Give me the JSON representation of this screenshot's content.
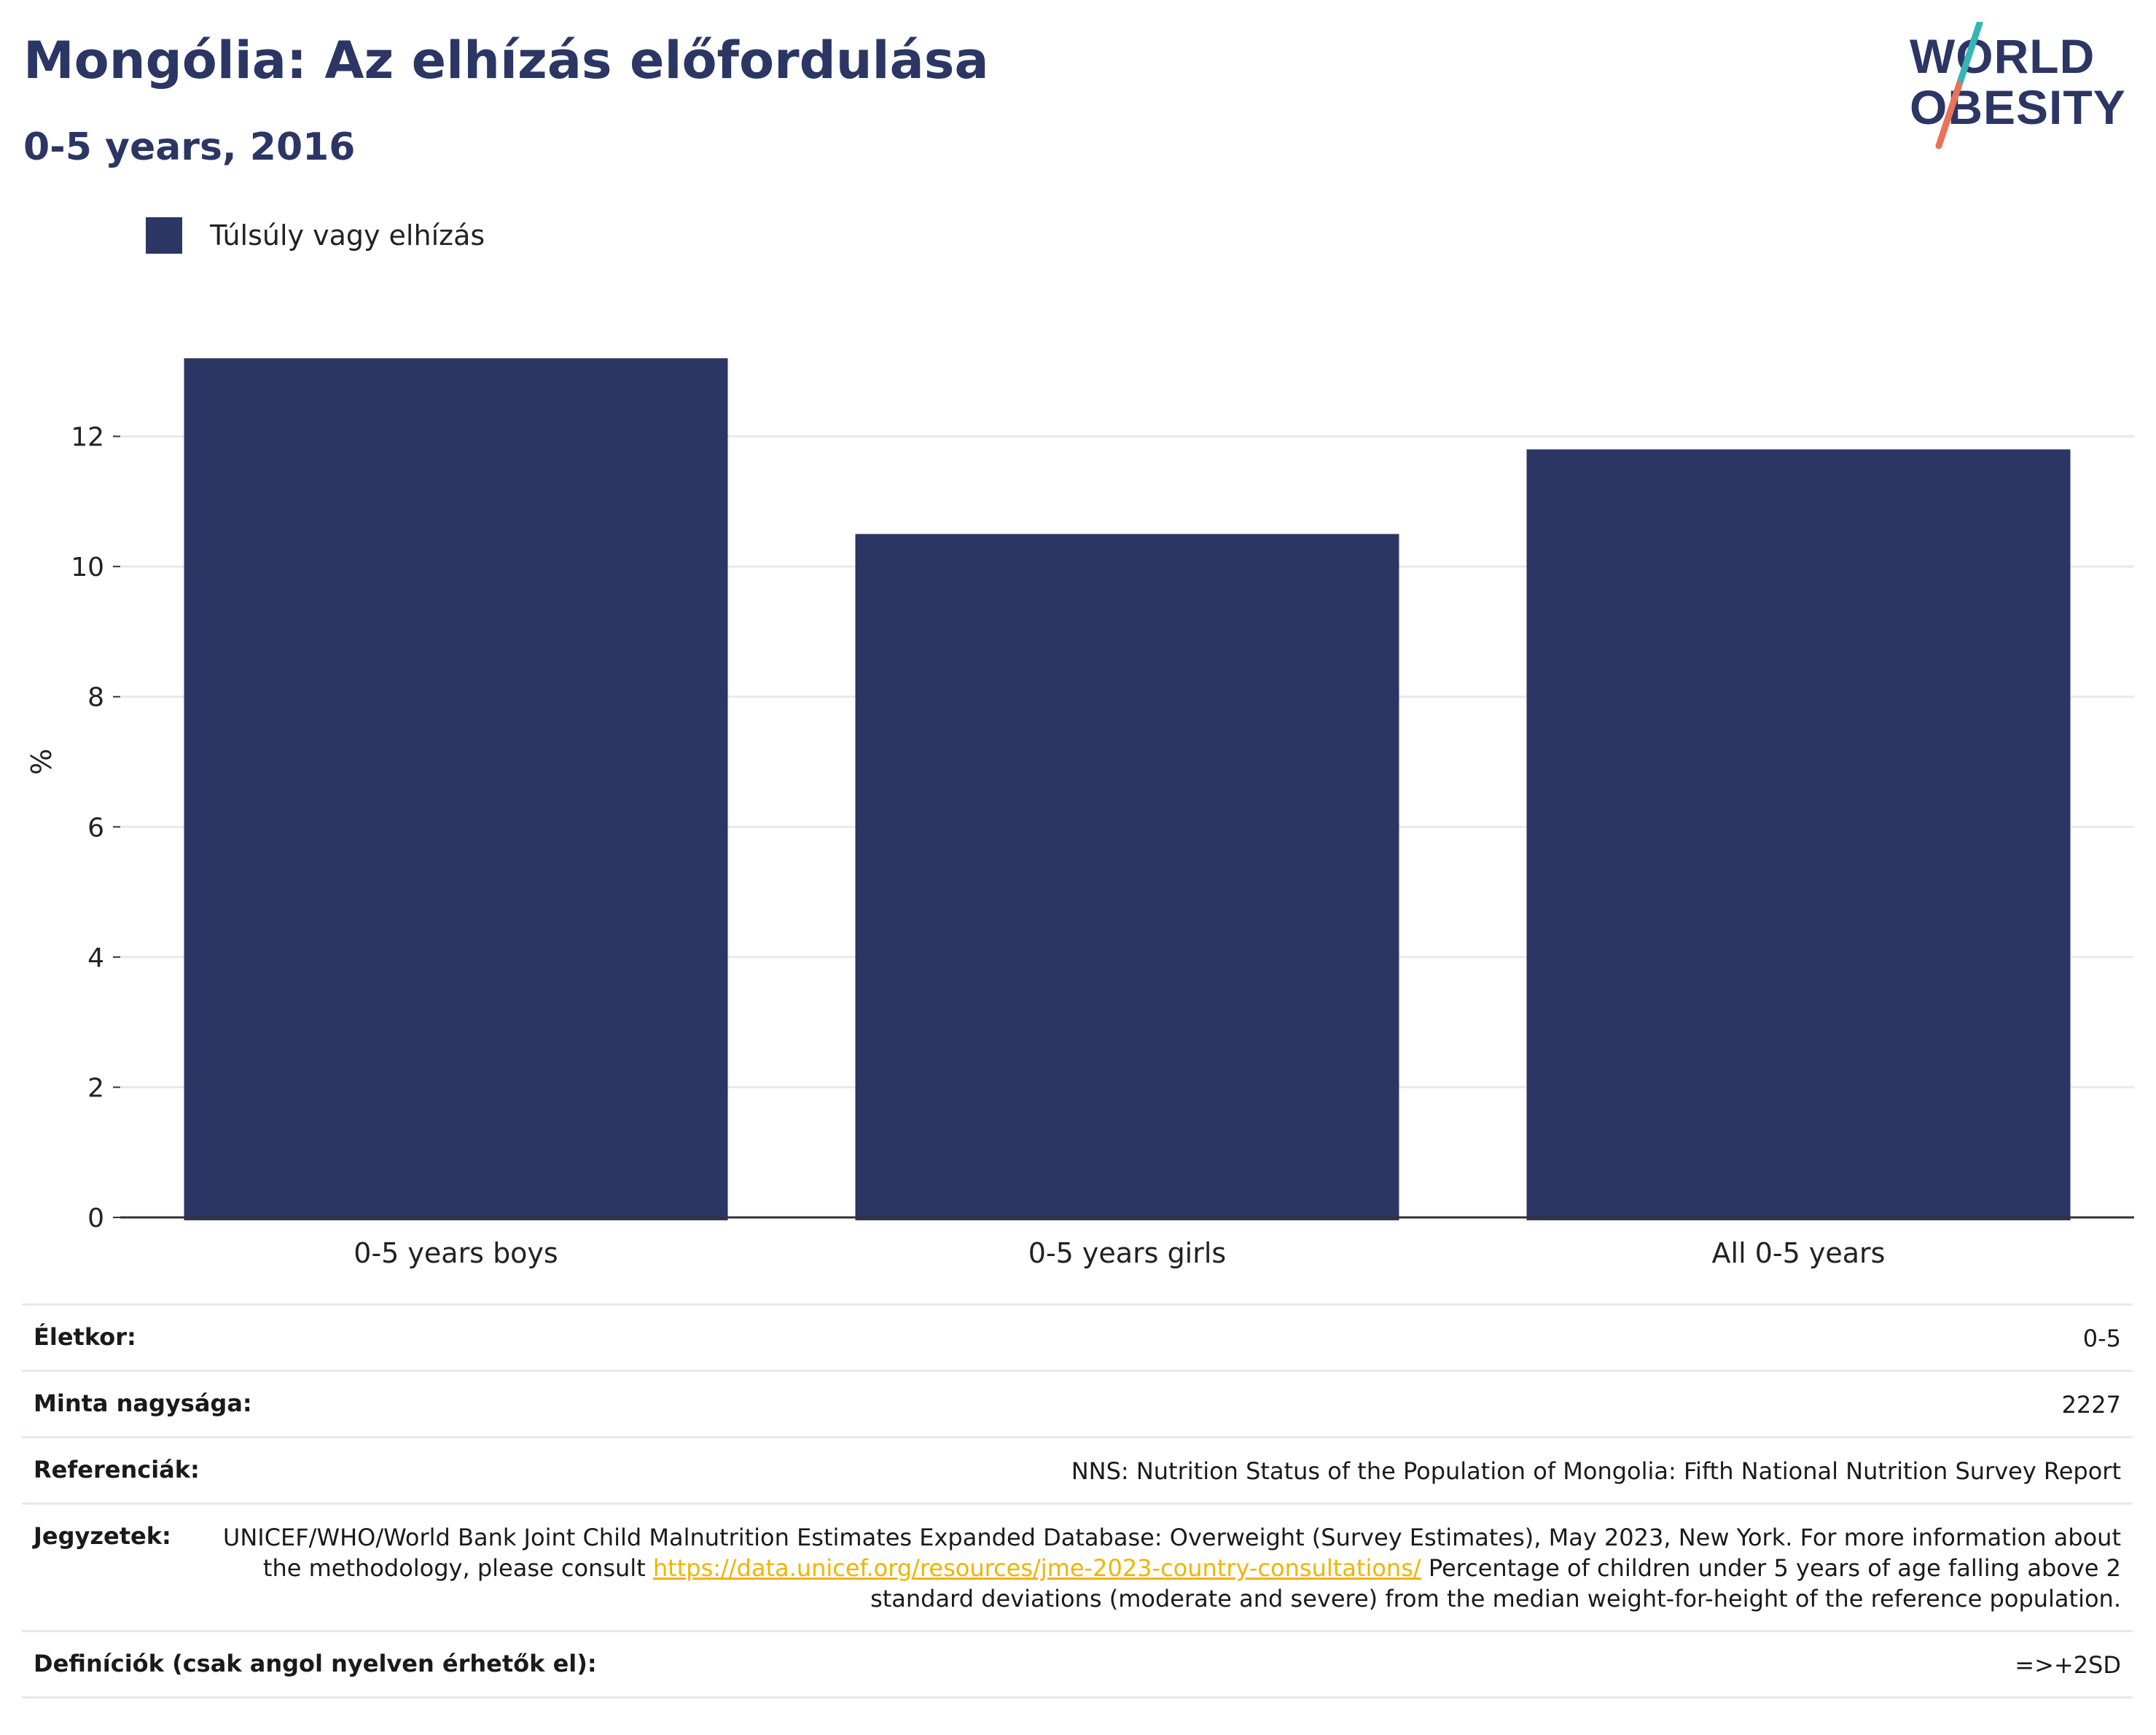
{
  "header": {
    "title": "Mongólia: Az elhízás előfordulása",
    "subtitle": "0-5 years, 2016"
  },
  "logo": {
    "line1": "WORLD",
    "line2": "OBESITY",
    "accent_teal": "#35b5b5",
    "accent_coral": "#e8735a"
  },
  "legend": {
    "label": "Túlsúly vagy elhízás",
    "color": "#2b3664"
  },
  "chart_data": {
    "type": "bar",
    "categories": [
      "0-5 years boys",
      "0-5 years girls",
      "All 0-5 years"
    ],
    "values": [
      13.2,
      10.5,
      11.8
    ],
    "series": [
      {
        "name": "Túlsúly vagy elhízás",
        "values": [
          13.2,
          10.5,
          11.8
        ]
      }
    ],
    "ylabel": "%",
    "xlabel": "",
    "ylim": [
      0,
      14
    ],
    "yticks": [
      0,
      2,
      4,
      6,
      8,
      10,
      12
    ],
    "grid": true,
    "legend_position": "top-left",
    "bar_color": "#2b3664"
  },
  "info": {
    "age": {
      "label": "Életkor:",
      "value": "0-5"
    },
    "sample": {
      "label": "Minta nagysága:",
      "value": "2227"
    },
    "references": {
      "label": "Referenciák:",
      "value": "NNS: Nutrition Status of the Population of Mongolia: Fifth National Nutrition Survey Report"
    },
    "notes": {
      "label": "Jegyzetek:",
      "text_before": "UNICEF/WHO/World Bank Joint Child Malnutrition Estimates Expanded Database: Overweight (Survey Estimates), May 2023, New York. For more information about the methodology, please consult ",
      "link": "https://data.unicef.org/resources/jme-2023-country-consultations/",
      "text_after": " Percentage of children under 5 years of age falling above 2 standard deviations (moderate and severe) from the median weight-for-height of the reference population."
    },
    "definitions": {
      "label": "Definíciók (csak angol nyelven érhetők el):",
      "value": "=>+2SD"
    }
  }
}
